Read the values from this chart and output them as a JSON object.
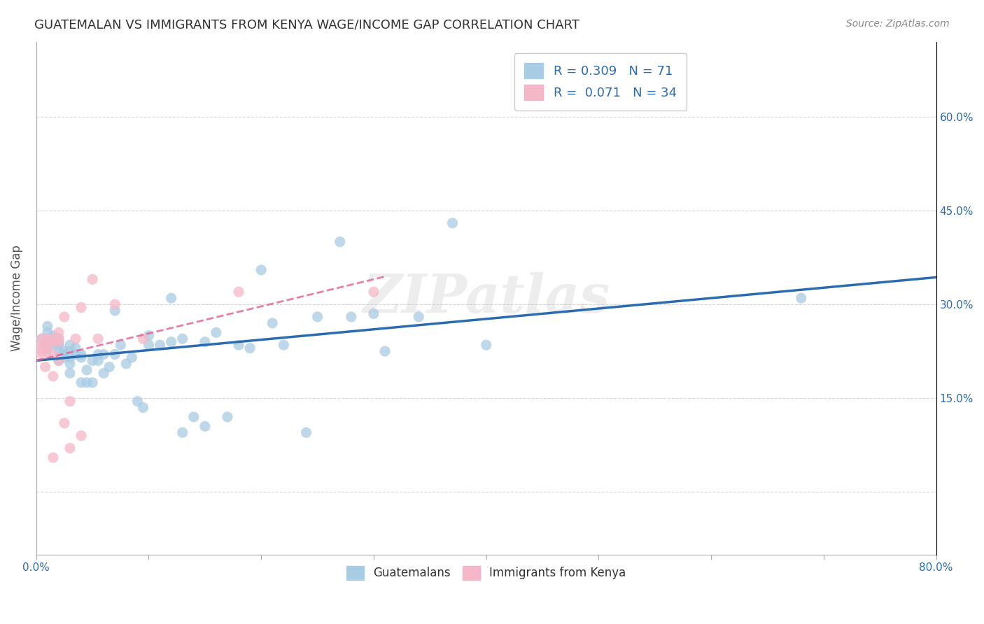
{
  "title": "GUATEMALAN VS IMMIGRANTS FROM KENYA WAGE/INCOME GAP CORRELATION CHART",
  "source": "Source: ZipAtlas.com",
  "ylabel": "Wage/Income Gap",
  "xlim": [
    0.0,
    0.8
  ],
  "ylim": [
    -0.1,
    0.72
  ],
  "yticks": [
    0.0,
    0.15,
    0.3,
    0.45,
    0.6
  ],
  "ytick_labels_right": [
    "",
    "15.0%",
    "30.0%",
    "45.0%",
    "60.0%"
  ],
  "xticks": [
    0.0,
    0.1,
    0.2,
    0.3,
    0.4,
    0.5,
    0.6,
    0.7,
    0.8
  ],
  "xtick_labels": [
    "0.0%",
    "",
    "",
    "",
    "",
    "",
    "",
    "",
    "80.0%"
  ],
  "blue_scatter_color": "#a8cce4",
  "pink_scatter_color": "#f4b8c8",
  "blue_line_color": "#2b6cb0",
  "pink_line_color": "#e06090",
  "legend_text_color": "#2b6cb0",
  "axis_text_color": "#2b6cb0",
  "R_blue": 0.309,
  "N_blue": 71,
  "R_pink": 0.071,
  "N_pink": 34,
  "watermark": "ZIPatlas",
  "guatemalans_x": [
    0.005,
    0.008,
    0.01,
    0.01,
    0.01,
    0.015,
    0.015,
    0.015,
    0.015,
    0.02,
    0.02,
    0.02,
    0.02,
    0.02,
    0.02,
    0.025,
    0.025,
    0.025,
    0.03,
    0.03,
    0.03,
    0.03,
    0.03,
    0.035,
    0.035,
    0.04,
    0.04,
    0.04,
    0.045,
    0.045,
    0.05,
    0.05,
    0.055,
    0.055,
    0.06,
    0.06,
    0.065,
    0.07,
    0.07,
    0.075,
    0.08,
    0.085,
    0.09,
    0.095,
    0.1,
    0.1,
    0.11,
    0.12,
    0.12,
    0.13,
    0.13,
    0.14,
    0.15,
    0.15,
    0.16,
    0.17,
    0.18,
    0.19,
    0.2,
    0.21,
    0.22,
    0.24,
    0.25,
    0.27,
    0.28,
    0.3,
    0.31,
    0.34,
    0.37,
    0.4,
    0.68
  ],
  "guatemalans_y": [
    0.245,
    0.24,
    0.23,
    0.255,
    0.265,
    0.245,
    0.235,
    0.25,
    0.245,
    0.24,
    0.225,
    0.215,
    0.21,
    0.235,
    0.245,
    0.225,
    0.22,
    0.215,
    0.235,
    0.225,
    0.215,
    0.205,
    0.19,
    0.23,
    0.22,
    0.22,
    0.215,
    0.175,
    0.195,
    0.175,
    0.21,
    0.175,
    0.22,
    0.21,
    0.22,
    0.19,
    0.2,
    0.29,
    0.22,
    0.235,
    0.205,
    0.215,
    0.145,
    0.135,
    0.25,
    0.235,
    0.235,
    0.24,
    0.31,
    0.245,
    0.095,
    0.12,
    0.105,
    0.24,
    0.255,
    0.12,
    0.235,
    0.23,
    0.355,
    0.27,
    0.235,
    0.095,
    0.28,
    0.4,
    0.28,
    0.285,
    0.225,
    0.28,
    0.43,
    0.235,
    0.31
  ],
  "kenya_x": [
    0.005,
    0.005,
    0.005,
    0.005,
    0.005,
    0.008,
    0.008,
    0.01,
    0.01,
    0.01,
    0.01,
    0.01,
    0.015,
    0.015,
    0.015,
    0.015,
    0.015,
    0.02,
    0.02,
    0.02,
    0.02,
    0.025,
    0.025,
    0.03,
    0.03,
    0.035,
    0.04,
    0.04,
    0.05,
    0.055,
    0.07,
    0.095,
    0.18,
    0.3
  ],
  "kenya_y": [
    0.245,
    0.235,
    0.23,
    0.225,
    0.22,
    0.235,
    0.2,
    0.245,
    0.235,
    0.235,
    0.245,
    0.225,
    0.245,
    0.24,
    0.22,
    0.185,
    0.055,
    0.255,
    0.21,
    0.245,
    0.24,
    0.28,
    0.11,
    0.07,
    0.145,
    0.245,
    0.295,
    0.09,
    0.34,
    0.245,
    0.3,
    0.245,
    0.32,
    0.32
  ]
}
